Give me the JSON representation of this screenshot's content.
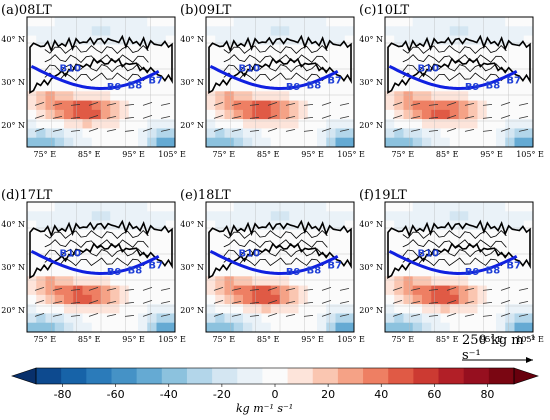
{
  "panels": [
    {
      "label": "(a)08LT",
      "strength": 1.0
    },
    {
      "label": "(b)09LT",
      "strength": 0.95
    },
    {
      "label": "(c)10LT",
      "strength": 0.9
    },
    {
      "label": "(d)17LT",
      "strength": 0.92
    },
    {
      "label": "(e)18LT",
      "strength": 0.97
    },
    {
      "label": "(f)19LT",
      "strength": 1.0
    }
  ],
  "axes": {
    "lat_ticks": [
      "40° N",
      "30° N",
      "20° N"
    ],
    "lon_ticks": [
      "75° E",
      "85° E",
      "95° E",
      "105° E"
    ]
  },
  "boxes": [
    "B10",
    "B9",
    "B8",
    "B7"
  ],
  "reference_vector": {
    "label": "250 kg m⁻¹ s⁻¹",
    "value": 250
  },
  "colorbar": {
    "ticks": [
      "-80",
      "-60",
      "-40",
      "-20",
      "0",
      "20",
      "40",
      "60",
      "80"
    ],
    "min": -90,
    "max": 90,
    "label": "kg  m⁻¹  s⁻¹",
    "colors": [
      "#08306b",
      "#0d4a8f",
      "#1763a8",
      "#2b7bba",
      "#4592c6",
      "#65aad3",
      "#8cc2de",
      "#b3d6ea",
      "#d4e6f2",
      "#eaf2f8",
      "#fbfbfb",
      "#fde4da",
      "#fac6b1",
      "#f5a286",
      "#ee7f63",
      "#e05a45",
      "#cc3a32",
      "#b21f27",
      "#960f1f",
      "#7a0612",
      "#67000d"
    ]
  }
}
